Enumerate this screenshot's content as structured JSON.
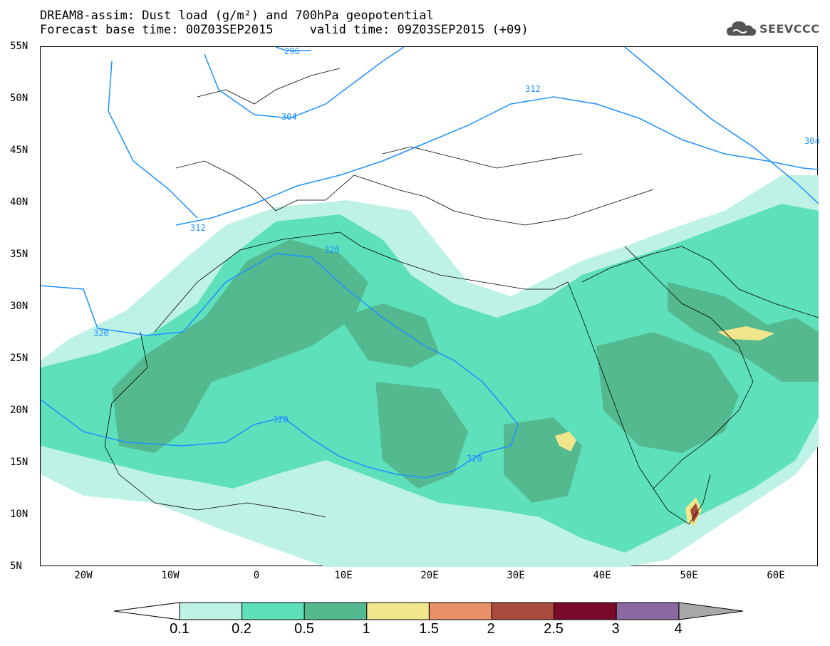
{
  "title": {
    "line1": "DREAM8-assim: Dust load (g/m²) and 700hPa geopotential",
    "line2": "Forecast base time: 00Z03SEP2015     valid time: 09Z03SEP2015 (+09)"
  },
  "logo": {
    "text": "SEEVCCC",
    "icon": "cloud-icon"
  },
  "axes": {
    "lat_labels": [
      "55N",
      "50N",
      "45N",
      "40N",
      "35N",
      "30N",
      "25N",
      "20N",
      "15N",
      "10N",
      "5N"
    ],
    "lon_labels": [
      "20W",
      "10W",
      "0",
      "10E",
      "20E",
      "30E",
      "40E",
      "50E",
      "60E"
    ]
  },
  "contours": {
    "geopotential_labels": [
      "296",
      "304",
      "312",
      "312",
      "320",
      "320",
      "320",
      "320",
      "304"
    ]
  },
  "colorbar": {
    "labels": [
      "0.1",
      "0.2",
      "0.5",
      "1",
      "1.5",
      "2",
      "2.5",
      "3",
      "4"
    ],
    "colors": [
      "#bff2e6",
      "#5ee0bb",
      "#55b990",
      "#f0e68c",
      "#e8906a",
      "#a84a3c",
      "#7a0a2a",
      "#8a6aa0"
    ]
  },
  "chart_data": {
    "type": "heatmap",
    "title": "DREAM8-assim: Dust load (g/m²) and 700hPa geopotential",
    "variable": "Dust load (g/m²)",
    "overlay": "700hPa geopotential contours",
    "lat_range": [
      5,
      55
    ],
    "lon_range": [
      -25,
      65
    ],
    "color_levels": [
      0.1,
      0.2,
      0.5,
      1,
      1.5,
      2,
      2.5,
      3,
      4
    ],
    "contour_levels": [
      296,
      304,
      312,
      320
    ]
  }
}
